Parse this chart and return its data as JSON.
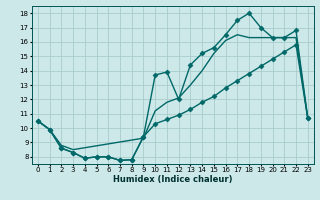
{
  "bg_color": "#cce8e8",
  "grid_color": "#aacccc",
  "line_color": "#006868",
  "xlabel": "Humidex (Indice chaleur)",
  "xlim": [
    -0.5,
    23.5
  ],
  "ylim": [
    7.5,
    18.5
  ],
  "xticks": [
    0,
    1,
    2,
    3,
    4,
    5,
    6,
    7,
    8,
    9,
    10,
    11,
    12,
    13,
    14,
    15,
    16,
    17,
    18,
    19,
    20,
    21,
    22,
    23
  ],
  "yticks": [
    8,
    9,
    10,
    11,
    12,
    13,
    14,
    15,
    16,
    17,
    18
  ],
  "line1_x": [
    0,
    1,
    2,
    3,
    4,
    5,
    6,
    7,
    8,
    9,
    10,
    11,
    12,
    13,
    14,
    15,
    16,
    17,
    18,
    19,
    20,
    21,
    22,
    23
  ],
  "line1_y": [
    10.5,
    9.9,
    8.6,
    8.3,
    7.9,
    8.0,
    8.0,
    7.75,
    7.8,
    9.4,
    13.7,
    13.9,
    12.0,
    14.4,
    15.2,
    15.6,
    16.5,
    17.5,
    18.0,
    17.0,
    16.3,
    16.3,
    16.8,
    10.7
  ],
  "line2_x": [
    0,
    23
  ],
  "line2_y": [
    10.5,
    10.7
  ],
  "line2_mid_x": [
    0,
    1,
    2,
    3,
    9,
    10,
    11,
    12,
    13,
    14,
    15,
    16,
    17,
    18,
    19,
    20,
    21,
    22,
    23
  ],
  "line2_mid_y": [
    10.5,
    9.9,
    8.8,
    8.5,
    9.3,
    11.2,
    11.8,
    12.1,
    13.0,
    14.0,
    15.2,
    16.1,
    16.5,
    16.3,
    16.3,
    16.3,
    16.3,
    16.3,
    10.7
  ],
  "line3_x": [
    0,
    1,
    2,
    3,
    4,
    5,
    6,
    7,
    8,
    9,
    10,
    11,
    12,
    13,
    14,
    15,
    16,
    17,
    18,
    19,
    20,
    21,
    22,
    23
  ],
  "line3_y": [
    10.5,
    9.9,
    8.6,
    8.3,
    7.9,
    8.0,
    8.0,
    7.75,
    7.8,
    9.4,
    10.3,
    10.6,
    10.9,
    11.3,
    11.8,
    12.2,
    12.8,
    13.3,
    13.8,
    14.3,
    14.8,
    15.3,
    15.8,
    10.7
  ],
  "marker": "D",
  "markersize": 2.5,
  "linewidth": 1.0
}
